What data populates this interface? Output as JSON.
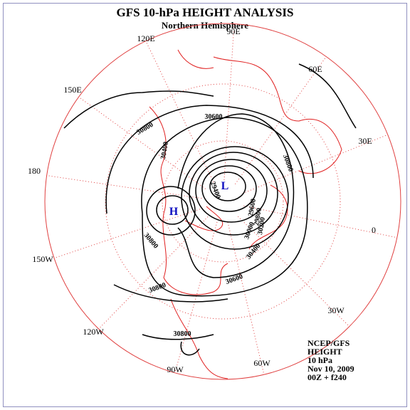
{
  "header": {
    "title": "GFS 10-hPa HEIGHT ANALYSIS",
    "subtitle": "Northern Hemisphere"
  },
  "longitude_labels": [
    "90E",
    "60E",
    "30E",
    "0",
    "30W",
    "60W",
    "90W",
    "120W",
    "150W",
    "180",
    "150E",
    "120E"
  ],
  "contour_labels": [
    "30800",
    "30600",
    "30400",
    "29400",
    "29600",
    "30800",
    "30800",
    "30800",
    "30600",
    "30400",
    "30000",
    "29800",
    "30200",
    "30800"
  ],
  "pressure_centers": [
    "H",
    "L"
  ],
  "info": [
    "NCEP/GFS",
    "HEIGHT",
    "10 hPa",
    "Nov 10, 2009",
    "00Z + f240"
  ]
}
